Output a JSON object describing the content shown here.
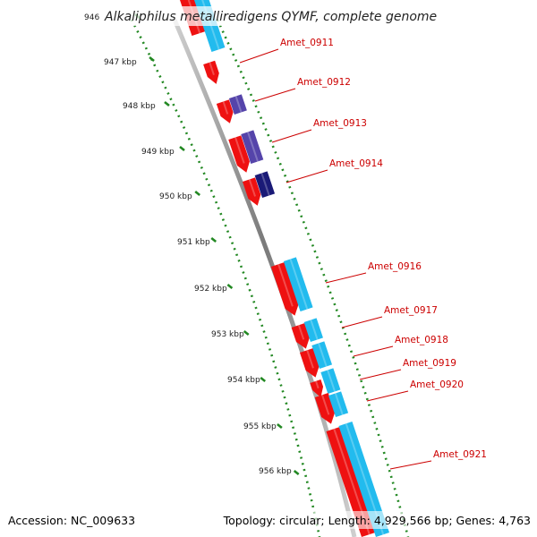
{
  "title": "Alkaliphilus metalliredigens QYMF, complete genome",
  "accession": "Accession: NC_009633",
  "summary": "Topology: circular; Length: 4,929,566 bp; Genes: 4,763",
  "kbp_labels": [
    "946",
    "947 kbp",
    "948 kbp",
    "949 kbp",
    "950 kbp",
    "951 kbp",
    "952 kbp",
    "953 kbp",
    "954 kbp",
    "955 kbp",
    "956 kbp"
  ],
  "gene_labels": [
    "Amet_0911",
    "Amet_0912",
    "Amet_0913",
    "Amet_0914",
    "Amet_0916",
    "Amet_0917",
    "Amet_0918",
    "Amet_0919",
    "Amet_0920",
    "Amet_0921"
  ],
  "colors": {
    "cds": "#ee1111",
    "gene": "#22bbee",
    "feature_a": "#5544aa",
    "feature_b": "#1a1a77",
    "backbone": "#888888",
    "ticks": "#228822",
    "label": "#cc0000"
  }
}
